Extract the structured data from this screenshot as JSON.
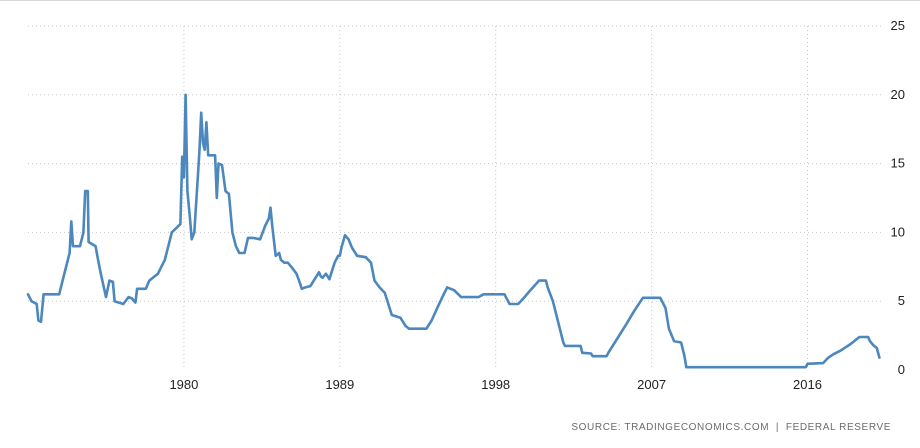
{
  "source_note": "SOURCE: TRADINGECONOMICS.COM  |  FEDERAL RESERVE",
  "colors": {
    "line": "#4c87bd",
    "grid": "#c8c8c8",
    "axis_text": "#222222",
    "source_text": "#6b6b6b",
    "top_border": "#d9d9d9"
  },
  "chart_data": {
    "type": "line",
    "title": "",
    "xlabel": "",
    "ylabel": "",
    "xlim": [
      1971,
      2020.3
    ],
    "ylim": [
      0,
      25
    ],
    "x_ticks": [
      1980,
      1989,
      1998,
      2007,
      2016
    ],
    "y_ticks": [
      0,
      5,
      10,
      15,
      20,
      25
    ],
    "y_axis_side": "right",
    "grid": true,
    "legend": "none",
    "series": [
      {
        "values": [
          [
            1971.0,
            5.5
          ],
          [
            1971.2,
            5.0
          ],
          [
            1971.5,
            4.8
          ],
          [
            1971.6,
            3.6
          ],
          [
            1971.75,
            3.5
          ],
          [
            1971.9,
            5.5
          ],
          [
            1972.5,
            5.5
          ],
          [
            1972.8,
            5.5
          ],
          [
            1973.0,
            6.5
          ],
          [
            1973.2,
            7.5
          ],
          [
            1973.4,
            8.5
          ],
          [
            1973.5,
            10.8
          ],
          [
            1973.6,
            9.0
          ],
          [
            1974.0,
            9.0
          ],
          [
            1974.2,
            10.0
          ],
          [
            1974.3,
            13.0
          ],
          [
            1974.45,
            13.0
          ],
          [
            1974.5,
            9.3
          ],
          [
            1974.9,
            9.0
          ],
          [
            1975.0,
            8.3
          ],
          [
            1975.2,
            7.0
          ],
          [
            1975.5,
            5.3
          ],
          [
            1975.7,
            6.5
          ],
          [
            1975.9,
            6.4
          ],
          [
            1976.0,
            5.0
          ],
          [
            1976.5,
            4.8
          ],
          [
            1976.8,
            5.3
          ],
          [
            1977.0,
            5.2
          ],
          [
            1977.2,
            4.9
          ],
          [
            1977.3,
            5.9
          ],
          [
            1977.8,
            5.9
          ],
          [
            1978.0,
            6.5
          ],
          [
            1978.5,
            7.0
          ],
          [
            1978.9,
            8.0
          ],
          [
            1979.1,
            9.0
          ],
          [
            1979.3,
            10.0
          ],
          [
            1979.8,
            10.6
          ],
          [
            1979.9,
            15.5
          ],
          [
            1980.0,
            14.0
          ],
          [
            1980.1,
            20.0
          ],
          [
            1980.2,
            13.0
          ],
          [
            1980.35,
            11.0
          ],
          [
            1980.45,
            9.5
          ],
          [
            1980.6,
            10.0
          ],
          [
            1980.8,
            14.0
          ],
          [
            1980.9,
            16.0
          ],
          [
            1981.0,
            18.7
          ],
          [
            1981.1,
            16.5
          ],
          [
            1981.2,
            16.0
          ],
          [
            1981.3,
            18.0
          ],
          [
            1981.4,
            15.6
          ],
          [
            1981.6,
            15.6
          ],
          [
            1981.8,
            15.6
          ],
          [
            1981.9,
            12.5
          ],
          [
            1982.0,
            15.0
          ],
          [
            1982.2,
            14.9
          ],
          [
            1982.4,
            13.0
          ],
          [
            1982.6,
            12.8
          ],
          [
            1982.8,
            10.0
          ],
          [
            1983.0,
            9.0
          ],
          [
            1983.2,
            8.5
          ],
          [
            1983.5,
            8.5
          ],
          [
            1983.7,
            9.6
          ],
          [
            1984.0,
            9.6
          ],
          [
            1984.4,
            9.5
          ],
          [
            1984.7,
            10.5
          ],
          [
            1984.9,
            11.0
          ],
          [
            1985.0,
            11.8
          ],
          [
            1985.1,
            10.5
          ],
          [
            1985.3,
            8.3
          ],
          [
            1985.5,
            8.5
          ],
          [
            1985.6,
            8.0
          ],
          [
            1985.8,
            7.8
          ],
          [
            1986.0,
            7.8
          ],
          [
            1986.2,
            7.5
          ],
          [
            1986.5,
            7.0
          ],
          [
            1986.7,
            6.3
          ],
          [
            1986.8,
            5.9
          ],
          [
            1987.0,
            6.0
          ],
          [
            1987.3,
            6.1
          ],
          [
            1987.5,
            6.5
          ],
          [
            1987.8,
            7.1
          ],
          [
            1987.9,
            6.8
          ],
          [
            1988.0,
            6.7
          ],
          [
            1988.2,
            7.0
          ],
          [
            1988.4,
            6.6
          ],
          [
            1988.7,
            7.8
          ],
          [
            1988.9,
            8.3
          ],
          [
            1989.0,
            8.3
          ],
          [
            1989.1,
            8.9
          ],
          [
            1989.3,
            9.8
          ],
          [
            1989.5,
            9.5
          ],
          [
            1989.7,
            8.9
          ],
          [
            1990.0,
            8.3
          ],
          [
            1990.5,
            8.2
          ],
          [
            1990.8,
            7.8
          ],
          [
            1991.0,
            6.5
          ],
          [
            1991.3,
            6.0
          ],
          [
            1991.6,
            5.6
          ],
          [
            1992.0,
            4.0
          ],
          [
            1992.5,
            3.8
          ],
          [
            1992.8,
            3.2
          ],
          [
            1993.0,
            3.0
          ],
          [
            1994.0,
            3.0
          ],
          [
            1994.3,
            3.6
          ],
          [
            1994.7,
            4.7
          ],
          [
            1995.0,
            5.5
          ],
          [
            1995.2,
            6.0
          ],
          [
            1995.6,
            5.8
          ],
          [
            1996.0,
            5.3
          ],
          [
            1997.0,
            5.3
          ],
          [
            1997.3,
            5.5
          ],
          [
            1998.5,
            5.5
          ],
          [
            1998.8,
            4.8
          ],
          [
            1999.3,
            4.8
          ],
          [
            1999.6,
            5.2
          ],
          [
            2000.0,
            5.8
          ],
          [
            2000.5,
            6.5
          ],
          [
            2000.9,
            6.5
          ],
          [
            2001.0,
            6.0
          ],
          [
            2001.3,
            5.0
          ],
          [
            2001.6,
            3.5
          ],
          [
            2001.9,
            2.0
          ],
          [
            2002.0,
            1.75
          ],
          [
            2002.9,
            1.75
          ],
          [
            2003.0,
            1.25
          ],
          [
            2003.5,
            1.2
          ],
          [
            2003.6,
            1.0
          ],
          [
            2004.4,
            1.0
          ],
          [
            2004.5,
            1.25
          ],
          [
            2005.0,
            2.25
          ],
          [
            2005.5,
            3.25
          ],
          [
            2006.0,
            4.3
          ],
          [
            2006.5,
            5.25
          ],
          [
            2007.5,
            5.25
          ],
          [
            2007.8,
            4.5
          ],
          [
            2008.0,
            3.0
          ],
          [
            2008.3,
            2.1
          ],
          [
            2008.7,
            2.0
          ],
          [
            2008.9,
            1.0
          ],
          [
            2009.0,
            0.2
          ],
          [
            2015.9,
            0.2
          ],
          [
            2016.0,
            0.45
          ],
          [
            2016.9,
            0.5
          ],
          [
            2017.2,
            0.9
          ],
          [
            2017.5,
            1.15
          ],
          [
            2017.9,
            1.4
          ],
          [
            2018.2,
            1.65
          ],
          [
            2018.5,
            1.9
          ],
          [
            2018.8,
            2.2
          ],
          [
            2019.0,
            2.4
          ],
          [
            2019.5,
            2.4
          ],
          [
            2019.6,
            2.1
          ],
          [
            2019.8,
            1.8
          ],
          [
            2020.0,
            1.6
          ],
          [
            2020.15,
            0.9
          ]
        ]
      }
    ]
  }
}
